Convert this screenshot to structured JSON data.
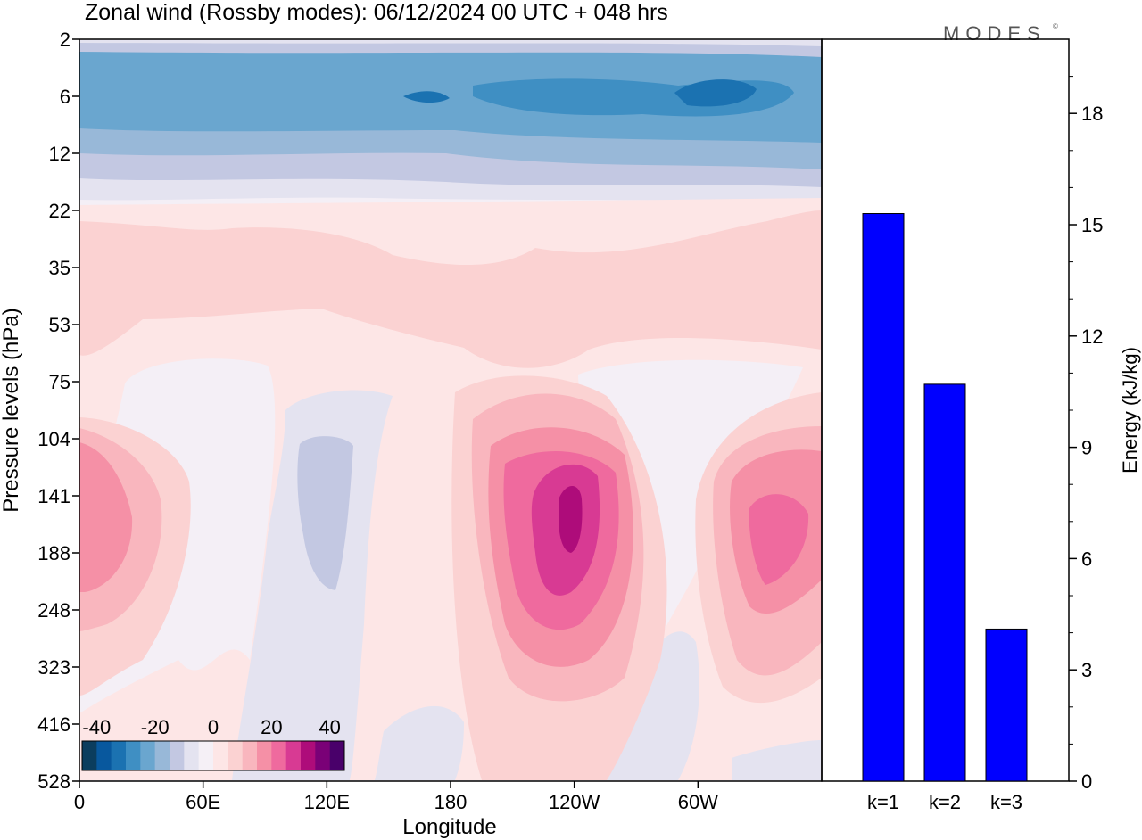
{
  "page": {
    "title": "Zonal wind (Rossby modes):  06/12/2024  00 UTC  + 048 hrs",
    "logo_text": "MODES",
    "logo_mark": "©"
  },
  "chart_data": [
    {
      "type": "heatmap",
      "title": "Zonal wind (Rossby modes):  06/12/2024  00 UTC  + 048 hrs",
      "xlabel": "Longitude",
      "ylabel": "Pressure levels (hPa)",
      "x_ticks": [
        "0",
        "60E",
        "120E",
        "180",
        "120W",
        "60W"
      ],
      "x_range_deg": [
        0,
        360
      ],
      "y_ticks": [
        "2",
        "6",
        "12",
        "22",
        "35",
        "53",
        "75",
        "104",
        "141",
        "188",
        "248",
        "323",
        "416",
        "528"
      ],
      "colorbar": {
        "labels": [
          "-40",
          "-20",
          "0",
          "20",
          "40"
        ],
        "min": -45,
        "max": 45,
        "step": 5,
        "colors": [
          "#0b3d5e",
          "#08589e",
          "#1b72b1",
          "#3f8fc3",
          "#6aa6cf",
          "#98b8d8",
          "#c3c8e2",
          "#e4e3f0",
          "#f5f0f6",
          "#fde6e6",
          "#fbd2d2",
          "#f9b6be",
          "#f590a6",
          "#ef6a9e",
          "#d83a93",
          "#ae0c7a",
          "#7a0177",
          "#49006a"
        ]
      },
      "field_description": "contoured zonal wind, lon vs pressure"
    },
    {
      "type": "bar",
      "categories": [
        "k=1",
        "k=2",
        "k=3"
      ],
      "values": [
        15.3,
        10.7,
        4.1
      ],
      "ylabel": "Energy (kJ/kg)",
      "ylim": [
        0,
        20
      ],
      "y_ticks": [
        0,
        3,
        6,
        9,
        12,
        15,
        18
      ],
      "bar_color": "#0000ff"
    }
  ]
}
